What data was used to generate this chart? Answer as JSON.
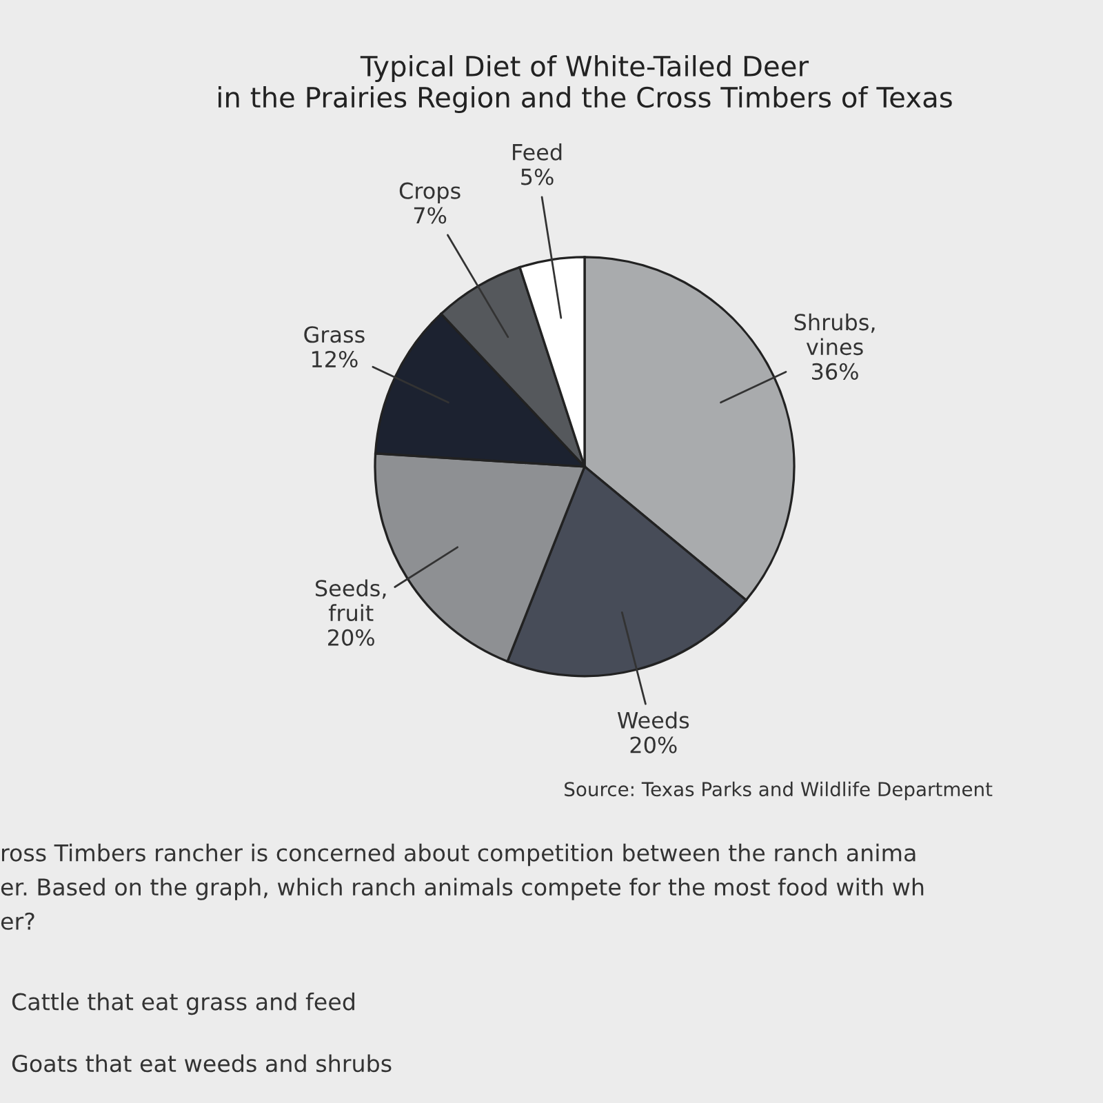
{
  "chart_data": {
    "type": "pie",
    "title": "Typical Diet of White-Tailed Deer\nin the Prairies Region and the Cross Timbers of Texas",
    "categories": [
      "Shrubs,\nvines",
      "Weeds",
      "Seeds,\nfruit",
      "Grass",
      "Crops",
      "Feed"
    ],
    "values": [
      36,
      20,
      20,
      12,
      7,
      5
    ],
    "value_labels": [
      "36%",
      "20%",
      "20%",
      "12%",
      "7%",
      "5%"
    ],
    "colors": [
      "#a9abad",
      "#474c58",
      "#8e9093",
      "#1c2230",
      "#55585c",
      "#ffffff"
    ],
    "annotations": [
      "Source: Texas Parks and Wildlife Department",
      "ross Timbers rancher is concerned about competition between the ranch anima",
      "er. Based on the graph, which ranch animals compete for the most food with wh",
      "er?",
      "Cattle that eat grass and feed",
      "Goats that eat weeds and shrubs"
    ]
  }
}
